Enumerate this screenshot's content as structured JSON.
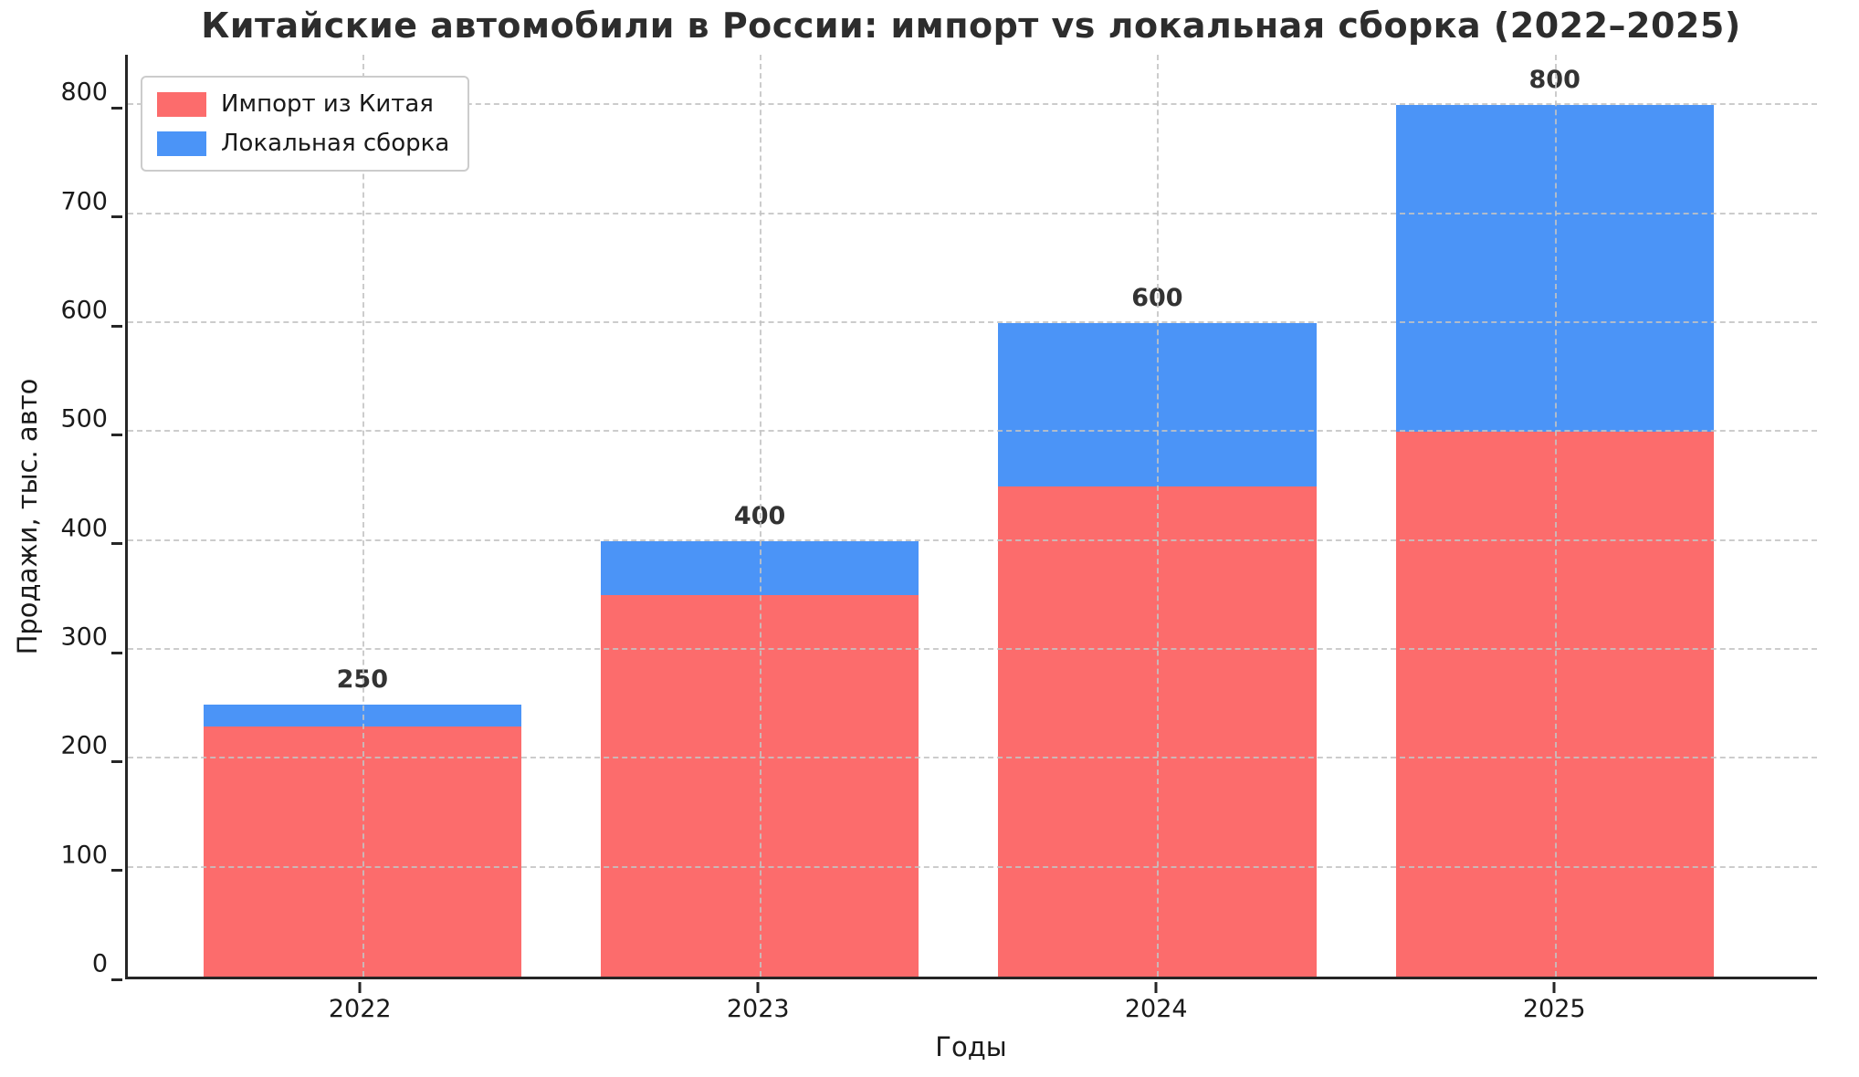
{
  "title": "Китайские автомобили в России: импорт vs локальная сборка (2022–2025)",
  "colors": {
    "import_series": "#FC6C6C",
    "local_series": "#4B94F7",
    "grid": "#c3c3c3",
    "axis": "#262626",
    "bar_label": "#333333"
  },
  "chart_data": {
    "type": "bar",
    "stacked": true,
    "title": "Китайские автомобили в России: импорт vs локальная сборка (2022–2025)",
    "xlabel": "Годы",
    "ylabel": "Продажи, тыс. авто",
    "categories": [
      "2022",
      "2023",
      "2024",
      "2025"
    ],
    "series": [
      {
        "name": "Импорт из Китая",
        "color": "#FC6C6C",
        "values": [
          230,
          350,
          450,
          500
        ]
      },
      {
        "name": "Локальная сборка",
        "color": "#4B94F7",
        "values": [
          20,
          50,
          150,
          300
        ]
      }
    ],
    "totals": [
      250,
      400,
      600,
      800
    ],
    "total_labels": [
      "250",
      "400",
      "600",
      "800"
    ],
    "yticks": [
      0,
      100,
      200,
      300,
      400,
      500,
      600,
      700,
      800
    ],
    "ytick_labels": [
      "0",
      "100",
      "200",
      "300",
      "400",
      "500",
      "600",
      "700",
      "800"
    ],
    "ylim": [
      0,
      849
    ],
    "grid": true,
    "grid_style": "dashed",
    "legend_position": "upper-left",
    "legend_entries": [
      "Импорт из Китая",
      "Локальная сборка"
    ]
  }
}
